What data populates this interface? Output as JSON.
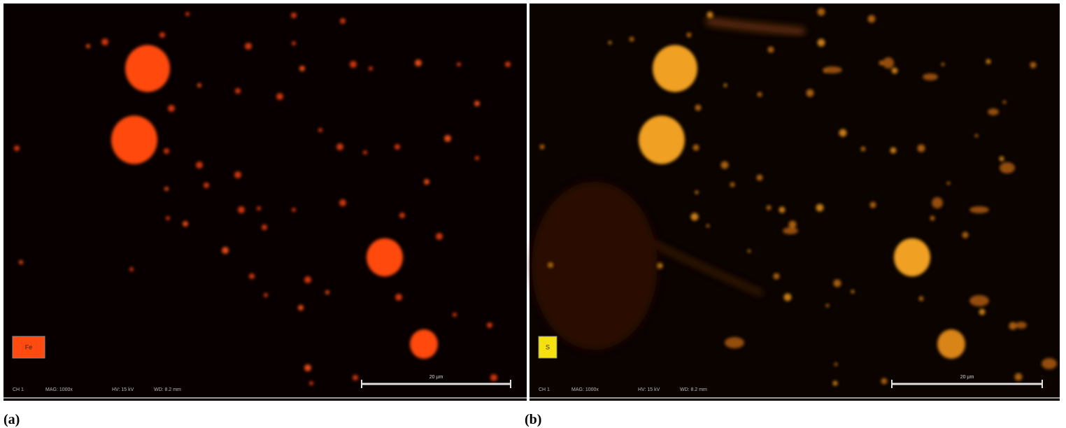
{
  "panels": [
    {
      "label": "(a)",
      "element": "Fe",
      "scale_bar": "20 µm",
      "footer": {
        "channel": "CH 1",
        "magnification": "MAG: 1000x",
        "voltage": "HV: 15 kV",
        "working_distance": "WD: 8.2 mm"
      }
    },
    {
      "label": "(b)",
      "element": "S",
      "scale_bar": "20 µm",
      "footer": {
        "channel": "CH 1",
        "magnification": "MAG: 1000x",
        "voltage": "HV: 15 kV",
        "working_distance": "WD: 8.2 mm"
      }
    }
  ]
}
